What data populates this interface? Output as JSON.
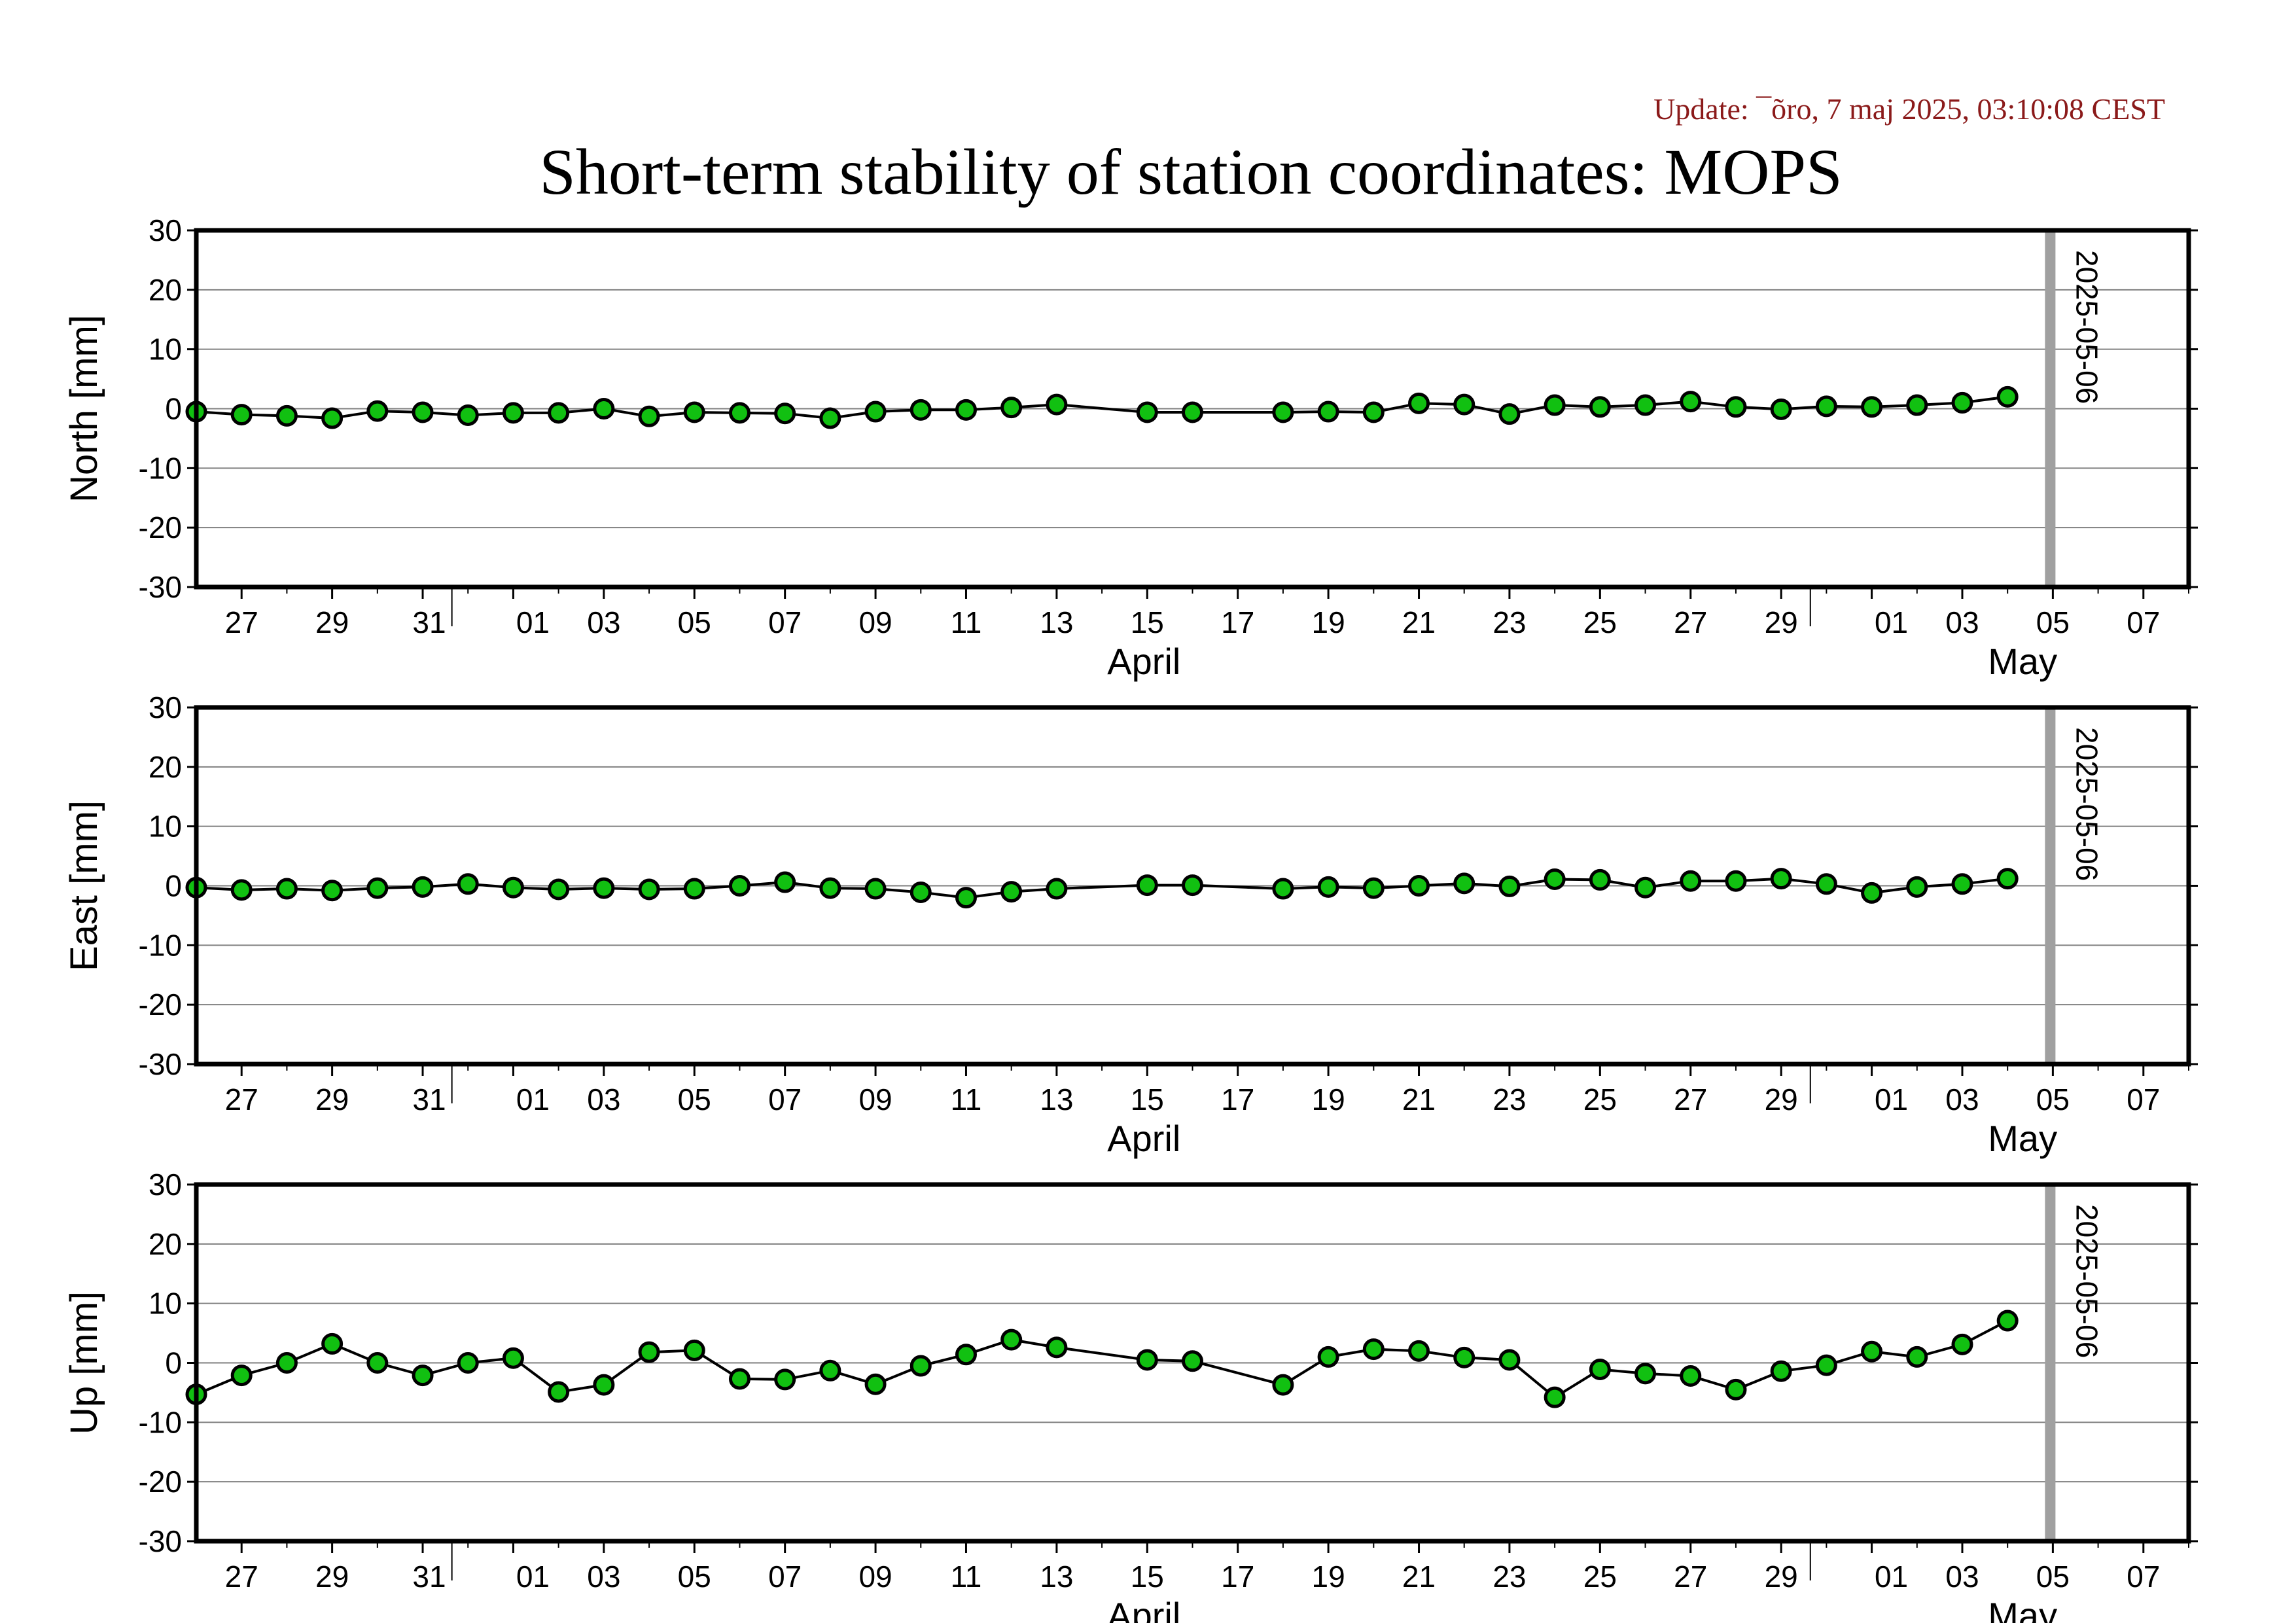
{
  "header": {
    "update": "Update: ¯õro, 7 maj 2025, 03:10:08 CEST",
    "title": "Short-term stability of station coordinates: MOPS"
  },
  "colors": {
    "marker_fill": "#11c011",
    "marker_stroke": "#000000",
    "line": "#000000",
    "grid": "#808080",
    "vertical_marker": "#a0a0a0",
    "update_text": "#8b1a1a"
  },
  "chart_data": [
    {
      "type": "line",
      "name": "north",
      "ylabel": "North [mm]",
      "ylim": [
        -30,
        30
      ],
      "yticks": [
        30,
        20,
        10,
        0,
        -10,
        -20,
        -30
      ],
      "xlim": [
        "2025-03-26",
        "2025-05-09"
      ],
      "xticks": [
        "27",
        "29",
        "31",
        "01",
        "03",
        "05",
        "07",
        "09",
        "11",
        "13",
        "15",
        "17",
        "19",
        "21",
        "23",
        "25",
        "27",
        "29",
        "01",
        "03",
        "05",
        "07",
        "09"
      ],
      "month_labels": [
        "April",
        "May"
      ],
      "grid": true,
      "vertical_marker": "2025-05-06",
      "x": [
        "2025-03-26",
        "2025-03-27",
        "2025-03-28",
        "2025-03-29",
        "2025-03-30",
        "2025-03-31",
        "2025-04-01",
        "2025-04-02",
        "2025-04-03",
        "2025-04-04",
        "2025-04-05",
        "2025-04-06",
        "2025-04-07",
        "2025-04-08",
        "2025-04-09",
        "2025-04-10",
        "2025-04-11",
        "2025-04-12",
        "2025-04-13",
        "2025-04-14",
        "2025-04-16",
        "2025-04-17",
        "2025-04-19",
        "2025-04-20",
        "2025-04-21",
        "2025-04-22",
        "2025-04-23",
        "2025-04-24",
        "2025-04-25",
        "2025-04-26",
        "2025-04-27",
        "2025-04-28",
        "2025-04-29",
        "2025-04-30",
        "2025-05-01",
        "2025-05-02",
        "2025-05-03",
        "2025-05-04",
        "2025-05-05"
      ],
      "values": [
        -0.5,
        -1,
        -1.2,
        -1.6,
        -0.4,
        -0.6,
        -1.1,
        -0.7,
        -0.7,
        0,
        -1.3,
        -0.6,
        -0.7,
        -0.8,
        -1.6,
        -0.5,
        -0.2,
        -0.2,
        0.2,
        0.7,
        -0.6,
        -0.6,
        -0.6,
        -0.5,
        -0.6,
        0.9,
        0.7,
        -0.9,
        0.6,
        0.3,
        0.6,
        1.2,
        0.3,
        -0.1,
        0.4,
        0.3,
        0.6,
        1,
        2
      ]
    },
    {
      "type": "line",
      "name": "east",
      "ylabel": "East [mm]",
      "ylim": [
        -30,
        30
      ],
      "yticks": [
        30,
        20,
        10,
        0,
        -10,
        -20,
        -30
      ],
      "xlim": [
        "2025-03-26",
        "2025-05-09"
      ],
      "xticks": [
        "27",
        "29",
        "31",
        "01",
        "03",
        "05",
        "07",
        "09",
        "11",
        "13",
        "15",
        "17",
        "19",
        "21",
        "23",
        "25",
        "27",
        "29",
        "01",
        "03",
        "05",
        "07",
        "09"
      ],
      "month_labels": [
        "April",
        "May"
      ],
      "grid": true,
      "vertical_marker": "2025-05-06",
      "x": [
        "2025-03-26",
        "2025-03-27",
        "2025-03-28",
        "2025-03-29",
        "2025-03-30",
        "2025-03-31",
        "2025-04-01",
        "2025-04-02",
        "2025-04-03",
        "2025-04-04",
        "2025-04-05",
        "2025-04-06",
        "2025-04-07",
        "2025-04-08",
        "2025-04-09",
        "2025-04-10",
        "2025-04-11",
        "2025-04-12",
        "2025-04-13",
        "2025-04-14",
        "2025-04-16",
        "2025-04-17",
        "2025-04-19",
        "2025-04-20",
        "2025-04-21",
        "2025-04-22",
        "2025-04-23",
        "2025-04-24",
        "2025-04-25",
        "2025-04-26",
        "2025-04-27",
        "2025-04-28",
        "2025-04-29",
        "2025-04-30",
        "2025-05-01",
        "2025-05-02",
        "2025-05-03",
        "2025-05-04",
        "2025-05-05"
      ],
      "values": [
        -0.3,
        -0.7,
        -0.5,
        -0.8,
        -0.4,
        -0.2,
        0.3,
        -0.3,
        -0.6,
        -0.4,
        -0.6,
        -0.5,
        0,
        0.6,
        -0.4,
        -0.5,
        -1.1,
        -2,
        -1,
        -0.5,
        0.1,
        0.1,
        -0.5,
        -0.2,
        -0.4,
        0,
        0.4,
        -0.1,
        1.1,
        1,
        -0.3,
        0.8,
        0.8,
        1.2,
        0.3,
        -1.2,
        -0.2,
        0.3,
        1.2
      ]
    },
    {
      "type": "line",
      "name": "up",
      "ylabel": "Up [mm]",
      "ylim": [
        -30,
        30
      ],
      "yticks": [
        30,
        20,
        10,
        0,
        -10,
        -20,
        -30
      ],
      "xlim": [
        "2025-03-26",
        "2025-05-09"
      ],
      "xticks": [
        "27",
        "29",
        "31",
        "01",
        "03",
        "05",
        "07",
        "09",
        "11",
        "13",
        "15",
        "17",
        "19",
        "21",
        "23",
        "25",
        "27",
        "29",
        "01",
        "03",
        "05",
        "07",
        "09"
      ],
      "month_labels": [
        "April",
        "May"
      ],
      "grid": true,
      "vertical_marker": "2025-05-06",
      "x": [
        "2025-03-26",
        "2025-03-27",
        "2025-03-28",
        "2025-03-29",
        "2025-03-30",
        "2025-03-31",
        "2025-04-01",
        "2025-04-02",
        "2025-04-03",
        "2025-04-04",
        "2025-04-05",
        "2025-04-06",
        "2025-04-07",
        "2025-04-08",
        "2025-04-09",
        "2025-04-10",
        "2025-04-11",
        "2025-04-12",
        "2025-04-13",
        "2025-04-14",
        "2025-04-16",
        "2025-04-17",
        "2025-04-19",
        "2025-04-20",
        "2025-04-21",
        "2025-04-22",
        "2025-04-23",
        "2025-04-24",
        "2025-04-25",
        "2025-04-26",
        "2025-04-27",
        "2025-04-28",
        "2025-04-29",
        "2025-04-30",
        "2025-05-01",
        "2025-05-02",
        "2025-05-03",
        "2025-05-04",
        "2025-05-05"
      ],
      "values": [
        -5.3,
        -2.1,
        0,
        3.2,
        0,
        -2.1,
        0,
        0.8,
        -4.9,
        -3.7,
        1.8,
        2.1,
        -2.7,
        -2.8,
        -1.3,
        -3.6,
        -0.5,
        1.4,
        3.9,
        2.6,
        0.5,
        0.3,
        -3.7,
        1,
        2.3,
        2,
        0.9,
        0.5,
        -5.8,
        -1.1,
        -1.8,
        -2.2,
        -4.5,
        -1.4,
        -0.4,
        1.9,
        1,
        3.1,
        7.1
      ]
    }
  ]
}
